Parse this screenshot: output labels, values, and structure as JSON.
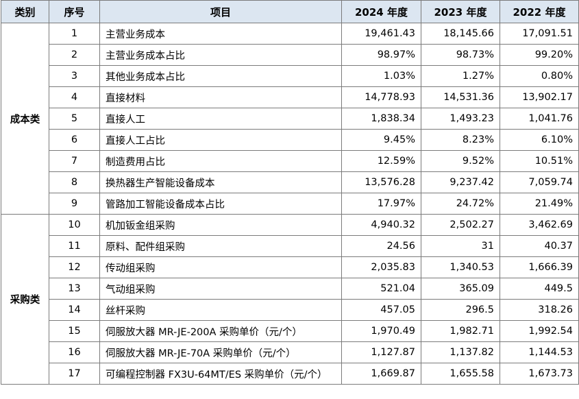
{
  "headers": [
    "类别",
    "序号",
    "项目",
    "2024 年度",
    "2023 年度",
    "2022 年度"
  ],
  "groups": [
    {
      "category": "成本类",
      "rows": [
        {
          "no": "1",
          "item": "主营业务成本",
          "y2024": "19,461.43",
          "y2023": "18,145.66",
          "y2022": "17,091.51"
        },
        {
          "no": "2",
          "item": "主营业务成本占比",
          "y2024": "98.97%",
          "y2023": "98.73%",
          "y2022": "99.20%"
        },
        {
          "no": "3",
          "item": "其他业务成本占比",
          "y2024": "1.03%",
          "y2023": "1.27%",
          "y2022": "0.80%"
        },
        {
          "no": "4",
          "item": "直接材料",
          "y2024": "14,778.93",
          "y2023": "14,531.36",
          "y2022": "13,902.17"
        },
        {
          "no": "5",
          "item": "直接人工",
          "y2024": "1,838.34",
          "y2023": "1,493.23",
          "y2022": "1,041.76"
        },
        {
          "no": "6",
          "item": "直接人工占比",
          "y2024": "9.45%",
          "y2023": "8.23%",
          "y2022": "6.10%"
        },
        {
          "no": "7",
          "item": "制造费用占比",
          "y2024": "12.59%",
          "y2023": "9.52%",
          "y2022": "10.51%"
        },
        {
          "no": "8",
          "item": "换热器生产智能设备成本",
          "y2024": "13,576.28",
          "y2023": "9,237.42",
          "y2022": "7,059.74"
        },
        {
          "no": "9",
          "item": "管路加工智能设备成本占比",
          "y2024": "17.97%",
          "y2023": "24.72%",
          "y2022": "21.49%"
        }
      ]
    },
    {
      "category": "采购类",
      "rows": [
        {
          "no": "10",
          "item": "机加钣金组采购",
          "y2024": "4,940.32",
          "y2023": "2,502.27",
          "y2022": "3,462.69"
        },
        {
          "no": "11",
          "item": "原料、配件组采购",
          "y2024": "24.56",
          "y2023": "31",
          "y2022": "40.37"
        },
        {
          "no": "12",
          "item": "传动组采购",
          "y2024": "2,035.83",
          "y2023": "1,340.53",
          "y2022": "1,666.39"
        },
        {
          "no": "13",
          "item": "气动组采购",
          "y2024": "521.04",
          "y2023": "365.09",
          "y2022": "449.5"
        },
        {
          "no": "14",
          "item": "丝杆采购",
          "y2024": "457.05",
          "y2023": "296.5",
          "y2022": "318.26"
        },
        {
          "no": "15",
          "item": "伺服放大器 MR-JE-200A 采购单价（元/个）",
          "y2024": "1,970.49",
          "y2023": "1,982.71",
          "y2022": "1,992.54"
        },
        {
          "no": "16",
          "item": "伺服放大器 MR-JE-70A 采购单价（元/个）",
          "y2024": "1,127.87",
          "y2023": "1,137.82",
          "y2022": "1,144.53"
        },
        {
          "no": "17",
          "item": "可编程控制器 FX3U-64MT/ES 采购单价（元/个）",
          "y2024": "1,669.87",
          "y2023": "1,655.58",
          "y2022": "1,673.73"
        }
      ]
    }
  ],
  "colors": {
    "header_bg": "#dce6f1",
    "border": "#7a7a7a"
  }
}
